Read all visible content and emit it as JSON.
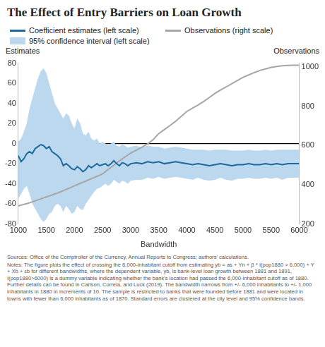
{
  "chart_data": {
    "type": "line",
    "title": "The Effect of Entry Barriers on Loan Growth",
    "x_label": "Bandwidth",
    "y_label": "Estimates",
    "y2_label": "Observations",
    "source": "Sources: Office of the Comptroller of the Currency, Annual Reports to Congress; authors' calculations.",
    "notes": "Notes: The figure plots the effect of crossing the 6,000-inhabitant cutoff from estimating yb = as + Yn + β * I(pop1880 > 6,000) + Y + Xb + εb for different bandwidths, where the dependent variable, yb, is bank-level loan growth between 1881 and 1891, I(pop1880>6000) is a dummy variable indicating whether the bank's location had passed the 6,000-inhabitant cutoff as of 1880. Further details can be found in Carlson, Correia, and Luck (2019). The bandwidth narrows from +/- 6,000 inhabitants to +/- 1,000 inhabitants in 1880 in increments of 10. The sample is restricted to banks that were founded before 1881 and were located in towns with fewer than 6,000 inhabitants as of 1870. Standard errors are clustered at the city level and 95% confidence bands.",
    "legend": "top",
    "grid": false,
    "x": [
      1000,
      1050,
      1100,
      1150,
      1200,
      1250,
      1300,
      1350,
      1400,
      1450,
      1500,
      1550,
      1600,
      1650,
      1700,
      1750,
      1800,
      1850,
      1900,
      1950,
      2000,
      2050,
      2100,
      2150,
      2200,
      2250,
      2300,
      2350,
      2400,
      2450,
      2500,
      2550,
      2600,
      2650,
      2700,
      2750,
      2800,
      2850,
      2900,
      2950,
      3000,
      3100,
      3200,
      3300,
      3400,
      3500,
      3600,
      3700,
      3800,
      3900,
      4000,
      4100,
      4200,
      4300,
      4400,
      4500,
      4600,
      4700,
      4800,
      4900,
      5000,
      5100,
      5200,
      5300,
      5400,
      5500,
      5600,
      5700,
      5800,
      5900,
      6000
    ],
    "series": [
      {
        "name": "Coefficient estimates (left scale)",
        "type": "line",
        "color": "#1b6a9b",
        "values": [
          -12,
          -18,
          -15,
          -10,
          -8,
          -10,
          -5,
          -3,
          -1,
          -2,
          -5,
          -3,
          -8,
          -10,
          -12,
          -15,
          -22,
          -20,
          -22,
          -25,
          -26,
          -23,
          -25,
          -28,
          -26,
          -22,
          -24,
          -22,
          -20,
          -22,
          -21,
          -20,
          -22,
          -20,
          -17,
          -20,
          -22,
          -19,
          -20,
          -22,
          -20,
          -19,
          -20,
          -18,
          -19,
          -18,
          -20,
          -19,
          -18,
          -19,
          -20,
          -21,
          -20,
          -21,
          -22,
          -21,
          -20,
          -21,
          -22,
          -21,
          -21,
          -20,
          -21,
          -21,
          -20,
          -21,
          -20,
          -21,
          -20,
          -20,
          -20
        ]
      },
      {
        "name": "95% confidence interval (left scale)",
        "type": "area",
        "color": "#bcd8ee",
        "upper": [
          2,
          5,
          12,
          20,
          35,
          45,
          55,
          65,
          72,
          75,
          70,
          60,
          50,
          40,
          35,
          30,
          25,
          30,
          28,
          20,
          15,
          25,
          20,
          10,
          8,
          12,
          5,
          3,
          5,
          0,
          2,
          0,
          -2,
          0,
          2,
          -2,
          -3,
          -1,
          -2,
          -4,
          -3,
          -2,
          -4,
          -2,
          -3,
          -3,
          -5,
          -4,
          -3,
          -4,
          -5,
          -6,
          -6,
          -6,
          -7,
          -6,
          -6,
          -6,
          -7,
          -7,
          -7,
          -6,
          -7,
          -7,
          -6,
          -7,
          -6,
          -6,
          -6,
          -6,
          -6
        ],
        "lower": [
          -55,
          -50,
          -45,
          -42,
          -50,
          -60,
          -65,
          -70,
          -75,
          -78,
          -75,
          -70,
          -68,
          -62,
          -60,
          -62,
          -68,
          -62,
          -65,
          -70,
          -68,
          -62,
          -65,
          -66,
          -60,
          -56,
          -52,
          -48,
          -45,
          -44,
          -42,
          -40,
          -42,
          -40,
          -36,
          -38,
          -40,
          -37,
          -38,
          -40,
          -37,
          -36,
          -36,
          -34,
          -35,
          -33,
          -35,
          -34,
          -33,
          -34,
          -35,
          -36,
          -34,
          -36,
          -37,
          -36,
          -34,
          -36,
          -37,
          -35,
          -35,
          -34,
          -35,
          -35,
          -34,
          -35,
          -34,
          -36,
          -34,
          -34,
          -34
        ]
      },
      {
        "name": "Observations (right scale)",
        "type": "line",
        "color": "#a6a6a6",
        "axis": "y2",
        "values": [
          292,
          296,
          300,
          304,
          308,
          313,
          318,
          323,
          328,
          333,
          338,
          343,
          348,
          353,
          358,
          364,
          370,
          376,
          382,
          388,
          395,
          401,
          407,
          413,
          419,
          425,
          431,
          437,
          443,
          449,
          456,
          467,
          478,
          489,
          500,
          512,
          522,
          532,
          542,
          552,
          561,
          577,
          592,
          608,
          630,
          661,
          682,
          702,
          724,
          749,
          774,
          791,
          807,
          825,
          845,
          866,
          883,
          899,
          916,
          932,
          948,
          960,
          972,
          983,
          991,
          999,
          1003,
          1007,
          1009,
          1010,
          1010
        ]
      }
    ],
    "xlim": [
      1000,
      6000
    ],
    "xticks": [
      1000,
      1500,
      2000,
      2500,
      3000,
      3500,
      4000,
      4500,
      5000,
      5500,
      6000
    ],
    "ylim": [
      -80,
      80
    ],
    "yticks": [
      -80,
      -60,
      -40,
      -20,
      0,
      20,
      40,
      60,
      80
    ],
    "y2lim": [
      200,
      1020
    ],
    "y2ticks": [
      200,
      400,
      600,
      800,
      1000
    ]
  }
}
